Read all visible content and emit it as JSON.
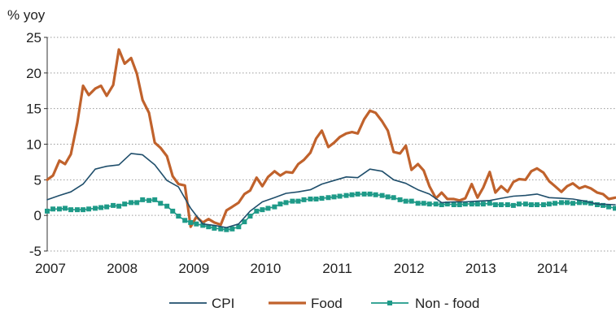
{
  "chart_data": {
    "type": "line",
    "title": "",
    "ylabel": "% yoy",
    "xlabel": "",
    "ylim": [
      -5,
      25
    ],
    "xlim": [
      2007.0,
      2014.92
    ],
    "yticks": [
      25,
      20,
      15,
      10,
      5,
      0,
      -5
    ],
    "ytick_labels": [
      "25",
      "20",
      "15",
      "10",
      "5",
      "0",
      "-5"
    ],
    "xticks": [
      2007,
      2008,
      2009,
      2010,
      2011,
      2012,
      2013,
      2014
    ],
    "xtick_labels": [
      "2007",
      "2008",
      "2009",
      "2010",
      "2011",
      "2012",
      "2013",
      "2014"
    ],
    "grid": "horizontal dotted",
    "legend_position": "bottom",
    "series": [
      {
        "name": "CPI",
        "color": "#1f4e6b",
        "style": "line",
        "x": [
          2007.0,
          2007.17,
          2007.33,
          2007.5,
          2007.67,
          2007.83,
          2008.0,
          2008.17,
          2008.33,
          2008.5,
          2008.67,
          2008.83,
          2009.0,
          2009.17,
          2009.33,
          2009.5,
          2009.67,
          2009.83,
          2010.0,
          2010.17,
          2010.33,
          2010.5,
          2010.67,
          2010.83,
          2011.0,
          2011.17,
          2011.33,
          2011.5,
          2011.67,
          2011.83,
          2012.0,
          2012.17,
          2012.33,
          2012.5,
          2012.67,
          2012.83,
          2013.0,
          2013.17,
          2013.33,
          2013.5,
          2013.67,
          2013.83,
          2014.0,
          2014.17,
          2014.33,
          2014.5,
          2014.67,
          2014.92
        ],
        "y": [
          2.2,
          2.8,
          3.3,
          4.4,
          6.5,
          6.9,
          7.1,
          8.7,
          8.5,
          7.1,
          4.9,
          4.0,
          1.0,
          -1.2,
          -1.4,
          -1.7,
          -1.2,
          0.6,
          1.9,
          2.5,
          3.1,
          3.3,
          3.6,
          4.4,
          4.9,
          5.4,
          5.3,
          6.5,
          6.2,
          5.0,
          4.5,
          3.6,
          3.0,
          1.8,
          1.9,
          1.9,
          2.0,
          2.1,
          2.4,
          2.7,
          2.8,
          3.0,
          2.5,
          2.4,
          2.3,
          2.0,
          1.6,
          1.5
        ]
      },
      {
        "name": "Food",
        "color": "#c0622c",
        "style": "line",
        "x": [
          2007.0,
          2007.08,
          2007.17,
          2007.25,
          2007.33,
          2007.42,
          2007.5,
          2007.58,
          2007.67,
          2007.75,
          2007.83,
          2007.92,
          2008.0,
          2008.08,
          2008.17,
          2008.25,
          2008.33,
          2008.42,
          2008.5,
          2008.58,
          2008.67,
          2008.75,
          2008.83,
          2008.92,
          2009.0,
          2009.08,
          2009.17,
          2009.25,
          2009.33,
          2009.42,
          2009.5,
          2009.58,
          2009.67,
          2009.75,
          2009.83,
          2009.92,
          2010.0,
          2010.08,
          2010.17,
          2010.25,
          2010.33,
          2010.42,
          2010.5,
          2010.58,
          2010.67,
          2010.75,
          2010.83,
          2010.92,
          2011.0,
          2011.08,
          2011.17,
          2011.25,
          2011.33,
          2011.42,
          2011.5,
          2011.58,
          2011.67,
          2011.75,
          2011.83,
          2011.92,
          2012.0,
          2012.08,
          2012.17,
          2012.25,
          2012.33,
          2012.42,
          2012.5,
          2012.58,
          2012.67,
          2012.75,
          2012.83,
          2012.92,
          2013.0,
          2013.08,
          2013.17,
          2013.25,
          2013.33,
          2013.42,
          2013.5,
          2013.58,
          2013.67,
          2013.75,
          2013.83,
          2013.92,
          2014.0,
          2014.08,
          2014.17,
          2014.25,
          2014.33,
          2014.42,
          2014.5,
          2014.58,
          2014.67,
          2014.75,
          2014.83,
          2014.92
        ],
        "y": [
          5.0,
          5.6,
          7.7,
          7.2,
          8.6,
          13.0,
          18.2,
          16.9,
          17.8,
          18.2,
          16.8,
          18.3,
          23.3,
          21.3,
          22.1,
          19.9,
          16.2,
          14.4,
          10.2,
          9.5,
          8.3,
          5.5,
          4.4,
          4.2,
          -1.6,
          -0.2,
          -1.0,
          -0.5,
          -1.0,
          -1.3,
          0.7,
          1.2,
          1.8,
          3.0,
          3.5,
          5.3,
          4.1,
          5.4,
          6.2,
          5.6,
          6.1,
          6.0,
          7.2,
          7.8,
          8.8,
          10.8,
          11.9,
          9.6,
          10.2,
          11.0,
          11.5,
          11.7,
          11.5,
          13.5,
          14.7,
          14.4,
          13.2,
          11.9,
          8.9,
          8.7,
          9.8,
          6.4,
          7.2,
          6.3,
          4.1,
          2.4,
          3.2,
          2.3,
          2.3,
          2.1,
          2.4,
          4.4,
          2.5,
          3.9,
          6.1,
          3.2,
          4.1,
          3.3,
          4.7,
          5.1,
          5.0,
          6.2,
          6.6,
          6.0,
          4.8,
          4.1,
          3.3,
          4.1,
          4.5,
          3.8,
          4.1,
          3.8,
          3.2,
          3.0,
          2.3,
          2.5
        ]
      },
      {
        "name": "Non - food",
        "color": "#1e9a88",
        "style": "line-markers",
        "x": [
          2007.0,
          2007.08,
          2007.17,
          2007.25,
          2007.33,
          2007.42,
          2007.5,
          2007.58,
          2007.67,
          2007.75,
          2007.83,
          2007.92,
          2008.0,
          2008.08,
          2008.17,
          2008.25,
          2008.33,
          2008.42,
          2008.5,
          2008.58,
          2008.67,
          2008.75,
          2008.83,
          2008.92,
          2009.0,
          2009.08,
          2009.17,
          2009.25,
          2009.33,
          2009.42,
          2009.5,
          2009.58,
          2009.67,
          2009.75,
          2009.83,
          2009.92,
          2010.0,
          2010.08,
          2010.17,
          2010.25,
          2010.33,
          2010.42,
          2010.5,
          2010.58,
          2010.67,
          2010.75,
          2010.83,
          2010.92,
          2011.0,
          2011.08,
          2011.17,
          2011.25,
          2011.33,
          2011.42,
          2011.5,
          2011.58,
          2011.67,
          2011.75,
          2011.83,
          2011.92,
          2012.0,
          2012.08,
          2012.17,
          2012.25,
          2012.33,
          2012.42,
          2012.5,
          2012.58,
          2012.67,
          2012.75,
          2012.83,
          2012.92,
          2013.0,
          2013.08,
          2013.17,
          2013.25,
          2013.33,
          2013.42,
          2013.5,
          2013.58,
          2013.67,
          2013.75,
          2013.83,
          2013.92,
          2014.0,
          2014.08,
          2014.17,
          2014.25,
          2014.33,
          2014.42,
          2014.5,
          2014.58,
          2014.67,
          2014.75,
          2014.83,
          2014.92
        ],
        "y": [
          0.6,
          0.9,
          0.9,
          1.0,
          0.8,
          0.8,
          0.8,
          0.9,
          1.0,
          1.1,
          1.2,
          1.4,
          1.3,
          1.6,
          1.8,
          1.8,
          2.2,
          2.1,
          2.2,
          1.7,
          1.3,
          0.6,
          -0.1,
          -0.7,
          -1.0,
          -1.2,
          -1.4,
          -1.6,
          -1.8,
          -1.9,
          -2.0,
          -1.9,
          -1.6,
          -0.9,
          -0.1,
          0.6,
          0.8,
          1.0,
          1.2,
          1.6,
          1.8,
          2.0,
          2.0,
          2.2,
          2.3,
          2.3,
          2.4,
          2.5,
          2.6,
          2.7,
          2.8,
          2.9,
          3.0,
          3.0,
          3.0,
          2.9,
          2.8,
          2.6,
          2.5,
          2.2,
          2.0,
          2.0,
          1.7,
          1.7,
          1.6,
          1.6,
          1.5,
          1.6,
          1.5,
          1.5,
          1.6,
          1.6,
          1.6,
          1.6,
          1.7,
          1.5,
          1.5,
          1.5,
          1.4,
          1.6,
          1.6,
          1.5,
          1.5,
          1.5,
          1.6,
          1.7,
          1.8,
          1.8,
          1.7,
          1.8,
          1.8,
          1.7,
          1.5,
          1.4,
          1.2,
          1.0
        ]
      }
    ]
  }
}
